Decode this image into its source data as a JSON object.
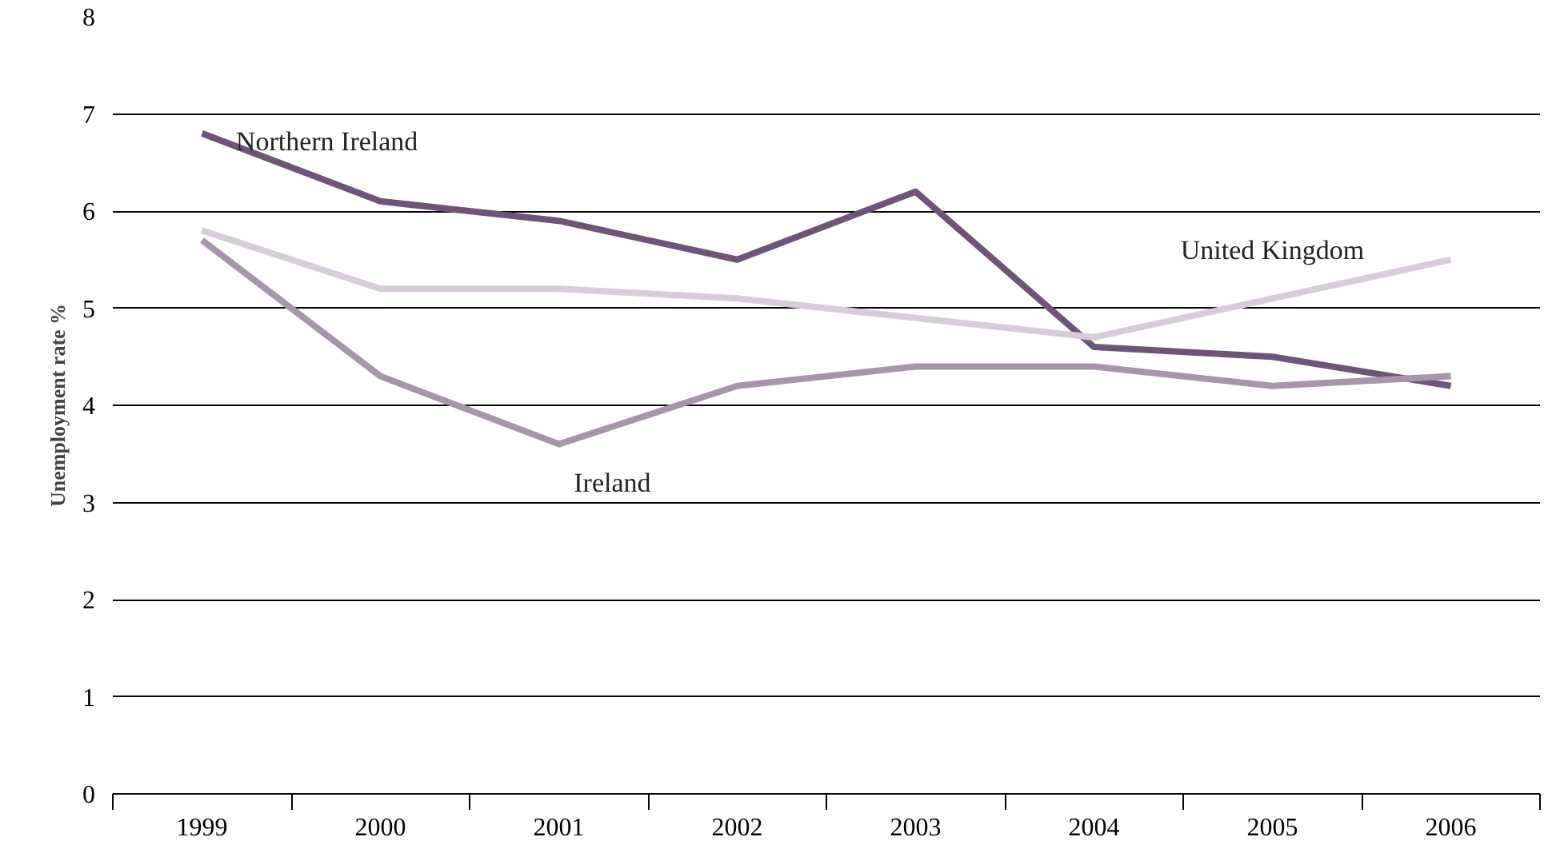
{
  "chart_data": {
    "type": "line",
    "ylabel": "Unemployment rate %",
    "categories": [
      "1999",
      "2000",
      "2001",
      "2002",
      "2003",
      "2004",
      "2005",
      "2006"
    ],
    "series": [
      {
        "name": "Northern Ireland",
        "color": "#6e5478",
        "values": [
          6.8,
          6.1,
          5.9,
          5.5,
          6.2,
          4.6,
          4.5,
          4.2
        ]
      },
      {
        "name": "United Kingdom",
        "color": "#d6cdd8",
        "values": [
          5.8,
          5.2,
          5.2,
          5.1,
          4.9,
          4.7,
          5.1,
          5.5
        ]
      },
      {
        "name": "Ireland",
        "color": "#a796a9",
        "values": [
          5.7,
          4.3,
          3.6,
          4.2,
          4.4,
          4.4,
          4.2,
          4.3
        ]
      }
    ],
    "ylim": [
      0,
      8
    ],
    "yticks": [
      0,
      1,
      2,
      3,
      4,
      5,
      6,
      7,
      8
    ],
    "grid": "y",
    "marker": "none",
    "line_style": "solid"
  }
}
